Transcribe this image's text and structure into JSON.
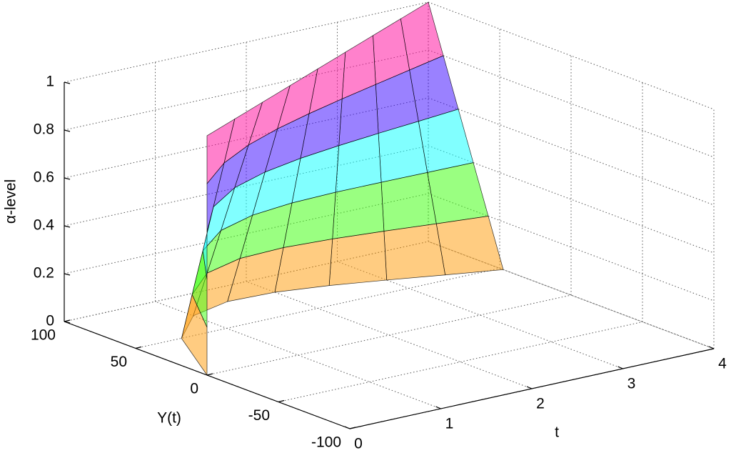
{
  "chart_data": {
    "type": "surface",
    "x_label": "t",
    "y_label": "Y(t)",
    "z_label": "α-level",
    "colormap": "hsv",
    "grid": true,
    "xlim": [
      0,
      4
    ],
    "ylim": [
      -100,
      100
    ],
    "zlim": [
      0,
      1
    ],
    "xticks": [
      0,
      1,
      2,
      3,
      4
    ],
    "yticks": [
      -100,
      -50,
      0,
      50,
      100
    ],
    "zticks": [
      0,
      0.2,
      0.4,
      0.6,
      0.8,
      1
    ],
    "x": [
      0,
      0.5,
      1,
      1.5,
      2,
      2.5,
      3,
      3.5,
      4
    ],
    "z": [
      0,
      0.2,
      0.4,
      0.6,
      0.8,
      1
    ],
    "values": [
      [
        0,
        49.7,
        73.4,
        81.3,
        80.0,
        73.8,
        65.4,
        56.3,
        47.5
      ],
      [
        0,
        42.3,
        63.7,
        72.5,
        74.0,
        71.5,
        67.3,
        62.5,
        58.0
      ],
      [
        0,
        34.8,
        54.0,
        63.8,
        68.0,
        69.3,
        69.2,
        68.8,
        68.5
      ],
      [
        0,
        27.4,
        44.4,
        55.0,
        62.0,
        67.0,
        71.2,
        75.0,
        79.0
      ],
      [
        0,
        19.9,
        34.7,
        46.3,
        56.0,
        64.8,
        73.1,
        81.3,
        89.5
      ],
      [
        0,
        12.5,
        25,
        37.5,
        50,
        62.5,
        75,
        87.5,
        100
      ]
    ]
  }
}
